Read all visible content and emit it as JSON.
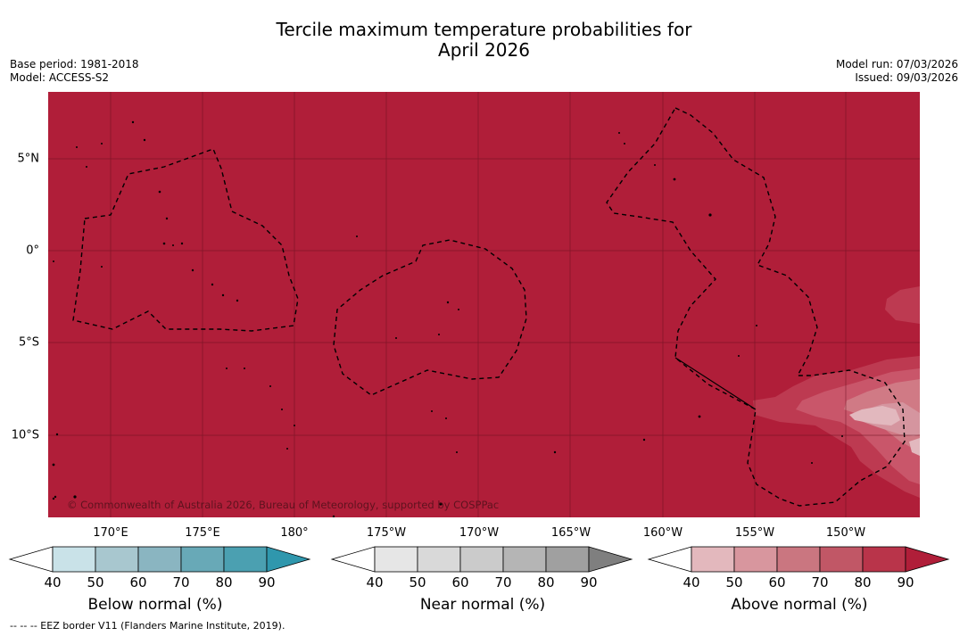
{
  "title_line1": "Tercile maximum temperature probabilities for",
  "title_line2": "April 2026",
  "base_period": "Base period: 1981-2018",
  "model": "Model: ACCESS-S2",
  "model_run": "Model run: 07/03/2026",
  "issued": "Issued: 09/03/2026",
  "credit": "© Commonwealth of Australia 2026, Bureau of Meteorology, supported by COSPPac",
  "footnote": "--  --  -- EEZ border V11 (Flanders Marine Institute, 2019).",
  "lon_labels": [
    "170°E",
    "175°E",
    "180°",
    "175°W",
    "170°W",
    "165°W",
    "160°W",
    "155°W",
    "150°W"
  ],
  "lat_labels": [
    "5°N",
    "0°",
    "5°S",
    "10°S"
  ],
  "map_colors": {
    "above_90": "#b01e39",
    "above_80": "#bd3a51",
    "above_70": "#c9566a",
    "above_60": "#d07a85",
    "above_50": "#d5959f",
    "above_40": "#e2b8be"
  },
  "colorbars": [
    {
      "label": "Below normal (%)",
      "ticks": [
        "40",
        "50",
        "60",
        "70",
        "80",
        "90"
      ],
      "colors": [
        "#ffffff",
        "#c9e2e8",
        "#a8c7cf",
        "#8ab5c1",
        "#68a9b7",
        "#4ba0b1",
        "#2f97ad"
      ]
    },
    {
      "label": "Near normal (%)",
      "ticks": [
        "40",
        "50",
        "60",
        "70",
        "80",
        "90"
      ],
      "colors": [
        "#ffffff",
        "#e6e6e6",
        "#d9d9d9",
        "#cbcbcb",
        "#b5b5b5",
        "#a0a0a0",
        "#7f7f7f"
      ]
    },
    {
      "label": "Above normal (%)",
      "ticks": [
        "40",
        "50",
        "60",
        "70",
        "80",
        "90"
      ],
      "colors": [
        "#ffffff",
        "#e3b8bd",
        "#d8969e",
        "#ca7680",
        "#c15766",
        "#b9344a",
        "#b01e39"
      ]
    }
  ]
}
